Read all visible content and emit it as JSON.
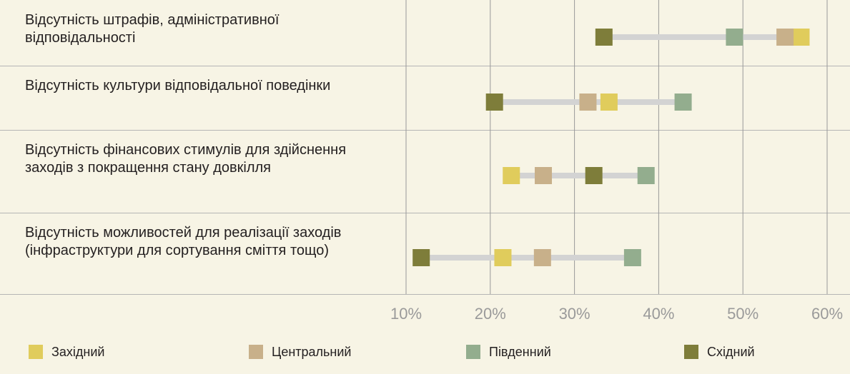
{
  "chart_data": {
    "type": "dot",
    "categories": [
      "Відсутність штрафів, адміністративної відповідальності",
      "Відсутність культури відповідальної поведінки",
      "Відсутність фінансових стимулів для здійснення заходів з покращення стану довкілля",
      "Відсутність можливостей для реалізації заходів (інфраструктури для сортування сміття тощо)"
    ],
    "series": [
      {
        "name": "Західний",
        "color": "#e0cc5c",
        "values": [
          56.9,
          34.1,
          22.5,
          21.5
        ]
      },
      {
        "name": "Центральний",
        "color": "#c8b08a",
        "values": [
          55,
          31.6,
          26.3,
          26.2
        ]
      },
      {
        "name": "Південний",
        "color": "#93ad8e",
        "values": [
          49,
          42.9,
          38.5,
          36.9
        ]
      },
      {
        "name": "Східний",
        "color": "#7e7d3a",
        "values": [
          33.5,
          20.5,
          32.3,
          11.8
        ]
      }
    ],
    "xlim": [
      10,
      60
    ],
    "xticks": [
      {
        "value": 10,
        "label": "10%"
      },
      {
        "value": 20,
        "label": "20%"
      },
      {
        "value": 30,
        "label": "30%"
      },
      {
        "value": 40,
        "label": "40%"
      },
      {
        "value": 50,
        "label": "50%"
      },
      {
        "value": 60,
        "label": "60%"
      }
    ],
    "grid": true,
    "legend": "bottom"
  }
}
